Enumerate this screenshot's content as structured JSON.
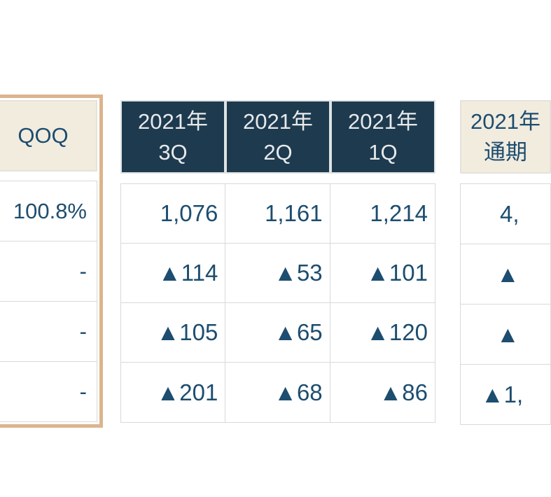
{
  "palette": {
    "header_navy": "#1e3a4e",
    "value_navy": "#1d4d6f",
    "beige_header": "#f2ecdf",
    "tan_highlight_border": "#dcb48d",
    "grid_line": "#d9d9d9"
  },
  "left_table": {
    "header": "QOQ",
    "rows": [
      "100.8%",
      "-",
      "-",
      "-"
    ]
  },
  "quarter_table": {
    "headers": [
      {
        "line1": "2021年",
        "line2": "3Q"
      },
      {
        "line1": "2021年",
        "line2": "2Q"
      },
      {
        "line1": "2021年",
        "line2": "1Q"
      }
    ],
    "rows": [
      [
        "1,076",
        "1,161",
        "1,214"
      ],
      [
        "▲114",
        "▲53",
        "▲101"
      ],
      [
        "▲105",
        "▲65",
        "▲120"
      ],
      [
        "▲201",
        "▲68",
        "▲86"
      ]
    ]
  },
  "annual_table": {
    "header": {
      "line1": "2021年",
      "line2": "通期"
    },
    "rows": [
      "4,",
      "▲",
      "▲",
      "▲1,"
    ]
  },
  "chart_data": {
    "type": "table",
    "tables": [
      {
        "name": "qoq-highlight-column",
        "column_header": "QOQ",
        "values": [
          "100.8%",
          "-",
          "-",
          "-"
        ]
      },
      {
        "name": "quarterly-results",
        "columns": [
          "2021年 3Q",
          "2021年 2Q",
          "2021年 1Q"
        ],
        "rows": [
          [
            "1,076",
            "1,161",
            "1,214"
          ],
          [
            "▲114",
            "▲53",
            "▲101"
          ],
          [
            "▲105",
            "▲65",
            "▲120"
          ],
          [
            "▲201",
            "▲68",
            "▲86"
          ]
        ]
      },
      {
        "name": "full-year-column",
        "columns": [
          "2021年 通期"
        ],
        "rows": [
          [
            "4,"
          ],
          [
            "▲"
          ],
          [
            "▲"
          ],
          [
            "▲1,"
          ]
        ],
        "clipped_at_right_edge": true
      }
    ],
    "layout_hints": {
      "triangle_symbol_meaning": "▲ denotes negative value (Japanese financial notation)",
      "highlighted_column": "QOQ (tan border)"
    }
  }
}
